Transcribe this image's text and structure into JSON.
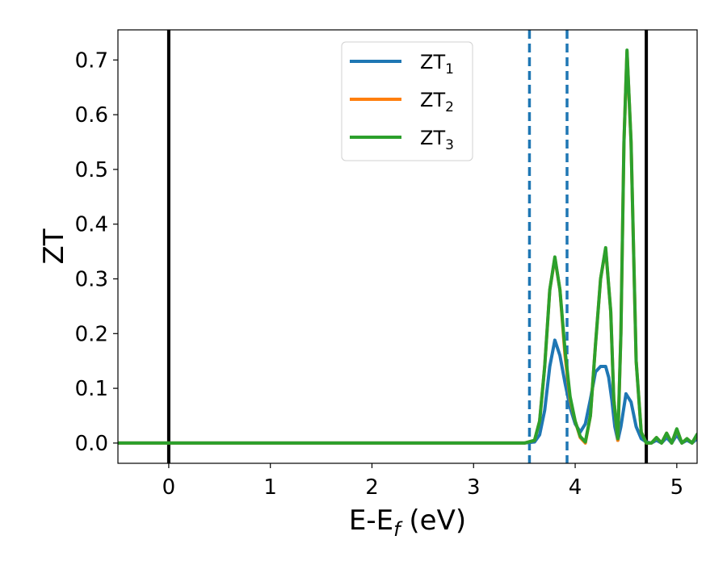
{
  "chart_data": {
    "type": "line",
    "xlabel": "E-E",
    "xlabel_sub": "f",
    "xlabel_unit": " (eV)",
    "ylabel": "ZT",
    "xlim": [
      -0.5,
      5.2
    ],
    "ylim": [
      -0.037,
      0.755
    ],
    "x_ticks": [
      0,
      1,
      2,
      3,
      4,
      5
    ],
    "y_ticks": [
      0.0,
      0.1,
      0.2,
      0.3,
      0.4,
      0.5,
      0.6,
      0.7
    ],
    "x_tick_labels": [
      "0",
      "1",
      "2",
      "3",
      "4",
      "5"
    ],
    "y_tick_labels": [
      "0.0",
      "0.1",
      "0.2",
      "0.3",
      "0.4",
      "0.5",
      "0.6",
      "0.7"
    ],
    "grid": false,
    "legend_position": "top-center",
    "vertical_lines": [
      {
        "x": 0.0,
        "style": "solid",
        "color": "#000000"
      },
      {
        "x": 4.7,
        "style": "solid",
        "color": "#000000"
      },
      {
        "x": 3.55,
        "style": "dashed",
        "color": "#1f77b4"
      },
      {
        "x": 3.92,
        "style": "dashed",
        "color": "#1f77b4"
      }
    ],
    "series": [
      {
        "name": "ZT",
        "name_sub": "1",
        "color": "#1f77b4",
        "x": [
          -0.5,
          3.5,
          3.6,
          3.65,
          3.7,
          3.75,
          3.8,
          3.85,
          3.9,
          3.95,
          4.0,
          4.05,
          4.1,
          4.15,
          4.2,
          4.25,
          4.3,
          4.33,
          4.36,
          4.39,
          4.42,
          4.45,
          4.5,
          4.55,
          4.6,
          4.65,
          4.7,
          4.75,
          4.8,
          4.85,
          4.9,
          4.95,
          5.0,
          5.05,
          5.1,
          5.15,
          5.2
        ],
        "y": [
          0.0,
          0.0,
          0.002,
          0.015,
          0.06,
          0.14,
          0.188,
          0.16,
          0.11,
          0.065,
          0.035,
          0.02,
          0.035,
          0.08,
          0.13,
          0.14,
          0.14,
          0.12,
          0.08,
          0.03,
          0.005,
          0.03,
          0.09,
          0.075,
          0.03,
          0.008,
          0.002,
          0.0,
          0.005,
          0.0,
          0.01,
          0.0,
          0.015,
          0.0,
          0.005,
          0.0,
          0.008
        ]
      },
      {
        "name": "ZT",
        "name_sub": "2",
        "color": "#ff7f0e",
        "x": [
          -0.5,
          3.5,
          3.6,
          3.65,
          3.7,
          3.75,
          3.8,
          3.85,
          3.9,
          3.95,
          4.0,
          4.05,
          4.1,
          4.15,
          4.2,
          4.25,
          4.3,
          4.35,
          4.38,
          4.42,
          4.45,
          4.48,
          4.51,
          4.55,
          4.6,
          4.65,
          4.7,
          4.75,
          4.8,
          4.85,
          4.9,
          4.95,
          5.0,
          5.05,
          5.1,
          5.15,
          5.2
        ],
        "y": [
          0.0,
          0.0,
          0.005,
          0.04,
          0.14,
          0.28,
          0.338,
          0.28,
          0.16,
          0.08,
          0.04,
          0.01,
          0.0,
          0.05,
          0.18,
          0.3,
          0.355,
          0.24,
          0.08,
          0.005,
          0.2,
          0.55,
          0.715,
          0.55,
          0.15,
          0.02,
          0.0,
          0.0,
          0.01,
          0.0,
          0.018,
          0.0,
          0.025,
          0.0,
          0.008,
          0.0,
          0.015
        ]
      },
      {
        "name": "ZT",
        "name_sub": "3",
        "color": "#2ca02c",
        "x": [
          -0.5,
          3.5,
          3.6,
          3.65,
          3.7,
          3.75,
          3.8,
          3.85,
          3.9,
          3.95,
          4.0,
          4.05,
          4.1,
          4.15,
          4.2,
          4.25,
          4.3,
          4.35,
          4.38,
          4.42,
          4.45,
          4.48,
          4.51,
          4.55,
          4.6,
          4.65,
          4.7,
          4.75,
          4.8,
          4.85,
          4.9,
          4.95,
          5.0,
          5.05,
          5.1,
          5.15,
          5.2
        ],
        "y": [
          0.0,
          0.0,
          0.005,
          0.04,
          0.14,
          0.28,
          0.34,
          0.28,
          0.17,
          0.085,
          0.04,
          0.012,
          0.002,
          0.05,
          0.18,
          0.3,
          0.357,
          0.24,
          0.08,
          0.008,
          0.2,
          0.55,
          0.718,
          0.55,
          0.15,
          0.02,
          0.0,
          0.0,
          0.01,
          0.0,
          0.018,
          0.0,
          0.026,
          0.0,
          0.008,
          0.0,
          0.016
        ]
      }
    ]
  }
}
